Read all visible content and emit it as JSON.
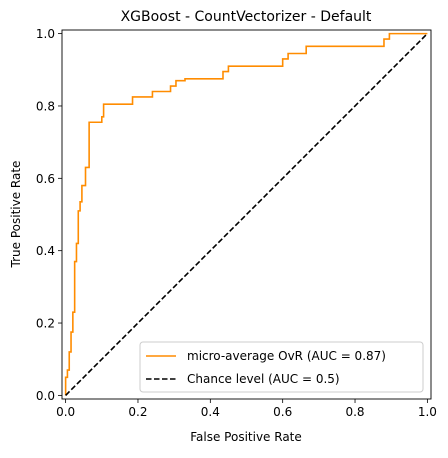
{
  "chart_data": {
    "type": "line",
    "title": "XGBoost - CountVectorizer - Default",
    "xlabel": "False Positive Rate",
    "ylabel": "True Positive Rate",
    "xlim": [
      -0.01,
      1.01
    ],
    "ylim": [
      -0.01,
      1.01
    ],
    "xticks": [
      0.0,
      0.2,
      0.4,
      0.6,
      0.8,
      1.0
    ],
    "xtick_labels": [
      "0.0",
      "0.2",
      "0.4",
      "0.6",
      "0.8",
      "1.0"
    ],
    "yticks": [
      0.0,
      0.2,
      0.4,
      0.6,
      0.8,
      1.0
    ],
    "ytick_labels": [
      "0.0",
      "0.2",
      "0.4",
      "0.6",
      "0.8",
      "1.0"
    ],
    "grid": false,
    "legend_position": "lower-right",
    "series": [
      {
        "name": "micro-average OvR (AUC = 0.87)",
        "color": "#ff8c00",
        "style": "solid",
        "x": [
          0.0,
          0.0,
          0.005,
          0.005,
          0.01,
          0.01,
          0.015,
          0.015,
          0.02,
          0.02,
          0.025,
          0.025,
          0.03,
          0.03,
          0.035,
          0.035,
          0.04,
          0.04,
          0.045,
          0.045,
          0.055,
          0.055,
          0.065,
          0.065,
          0.075,
          0.075,
          0.1,
          0.1,
          0.105,
          0.105,
          0.11,
          0.11,
          0.185,
          0.185,
          0.24,
          0.24,
          0.29,
          0.29,
          0.305,
          0.305,
          0.33,
          0.33,
          0.435,
          0.435,
          0.45,
          0.45,
          0.6,
          0.6,
          0.615,
          0.615,
          0.665,
          0.665,
          0.88,
          0.88,
          0.895,
          0.895,
          1.0
        ],
        "y": [
          0.0,
          0.05,
          0.05,
          0.07,
          0.07,
          0.12,
          0.12,
          0.175,
          0.175,
          0.23,
          0.23,
          0.37,
          0.37,
          0.42,
          0.42,
          0.51,
          0.51,
          0.535,
          0.535,
          0.58,
          0.58,
          0.63,
          0.63,
          0.755,
          0.755,
          0.755,
          0.755,
          0.77,
          0.77,
          0.805,
          0.805,
          0.805,
          0.805,
          0.825,
          0.825,
          0.84,
          0.84,
          0.855,
          0.855,
          0.87,
          0.87,
          0.875,
          0.875,
          0.895,
          0.895,
          0.91,
          0.91,
          0.93,
          0.93,
          0.945,
          0.945,
          0.965,
          0.965,
          0.985,
          0.985,
          1.0,
          1.0
        ]
      },
      {
        "name": "Chance level (AUC = 0.5)",
        "color": "#000000",
        "style": "dashed",
        "x": [
          0.0,
          1.0
        ],
        "y": [
          0.0,
          1.0
        ]
      }
    ]
  }
}
